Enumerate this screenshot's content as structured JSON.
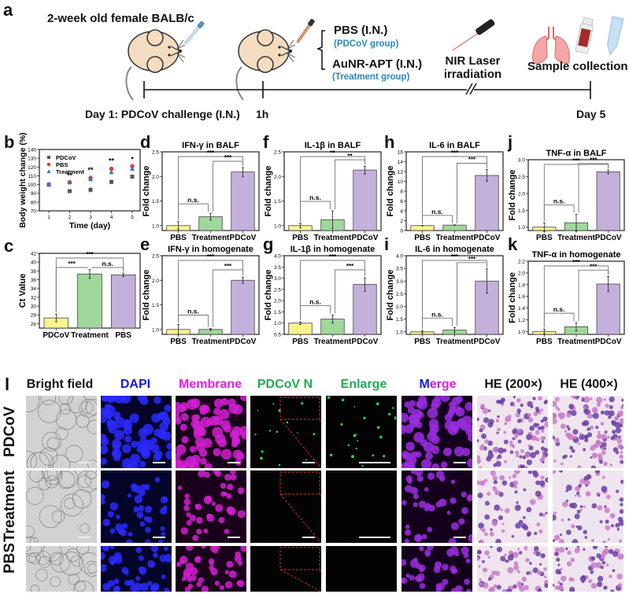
{
  "panel_a": {
    "label": "a",
    "mouse_strain": "2-week old female BALB/c",
    "branch_top": "PBS (I.N.)",
    "branch_top_sub": "(PDCoV group)",
    "branch_bottom": "AuNR-APT (I.N.)",
    "branch_bottom_sub": "(Treatment group)",
    "laser": "NIR Laser irradiation",
    "laser_line1": "NIR Laser",
    "laser_line2": "irradiation",
    "sample": "Sample collection",
    "day1": "Day 1: PDCoV challenge (I.N.)",
    "t1h": "1h",
    "day5": "Day 5",
    "colors": {
      "blue_text": "#2e86c1",
      "mouse": "#f3dcc0"
    }
  },
  "panel_l": {
    "label": "l",
    "columns": [
      "Bright field",
      "DAPI",
      "Membrane",
      "PDCoV N",
      "Enlarge",
      "Merge",
      "HE (200×)",
      "HE (400×)"
    ],
    "merge_parts": [
      "M",
      "er",
      "ge"
    ],
    "rows": [
      "PDCoV",
      "Treatment",
      "PBS"
    ],
    "colors": {
      "dapi": "#1a1aff",
      "membrane": "#e020e0",
      "pdcov": "#22aa55",
      "enlarge": "#22aa55"
    }
  },
  "chart_data": [
    {
      "id": "b",
      "label": "b",
      "type": "scatter",
      "title": "",
      "xlabel": "Time (day)",
      "ylabel": "Body weight change (%)",
      "x": [
        1,
        2,
        3,
        4,
        5
      ],
      "xticks": [
        "1",
        "2",
        "3",
        "4",
        "5"
      ],
      "ylim": [
        70,
        140
      ],
      "yticks": [
        "70",
        "80",
        "90",
        "100",
        "110",
        "120",
        "130",
        "140"
      ],
      "series": [
        {
          "name": "PDCoV",
          "marker": "square",
          "color": "#555555",
          "values": [
            100,
            92.5,
            94,
            103,
            109
          ],
          "errors": [
            2,
            1.5,
            3,
            2.5,
            1.5
          ]
        },
        {
          "name": "PBS",
          "marker": "circle",
          "color": "#e04040",
          "values": [
            100,
            102.5,
            107.5,
            118,
            121
          ],
          "errors": [
            2,
            1.5,
            3,
            2.5,
            1.5
          ]
        },
        {
          "name": "Treatment",
          "marker": "triangle",
          "color": "#3a6fd8",
          "values": [
            100,
            102.5,
            106,
            114,
            118
          ],
          "errors": [
            3,
            1.5,
            2.5,
            2.5,
            3
          ]
        }
      ],
      "annotations": [
        "",
        "**",
        "**",
        "**",
        "*"
      ]
    },
    {
      "id": "c",
      "label": "c",
      "type": "bar",
      "title": "",
      "xlabel": "",
      "ylabel": "Ct Value",
      "categories": [
        "PDCoV",
        "Treatment",
        "PBS"
      ],
      "values": [
        27.3,
        37.3,
        37.1
      ],
      "errors": [
        0.9,
        1.0,
        0.4
      ],
      "colors": [
        "#fbf38c",
        "#9fd89a",
        "#c3b0db"
      ],
      "ylim": [
        25,
        42
      ],
      "yticks": [
        "26",
        "28",
        "30",
        "32",
        "34",
        "36",
        "38",
        "40",
        "42"
      ],
      "ytick_values": [
        26,
        28,
        30,
        32,
        34,
        36,
        38,
        40,
        42
      ],
      "brackets": [
        {
          "from": 0,
          "to": 2,
          "text": "***"
        },
        {
          "from": 0,
          "to": 1,
          "text": "***"
        },
        {
          "from": 1,
          "to": 2,
          "text": "n.s."
        }
      ]
    },
    {
      "id": "d",
      "label": "d",
      "type": "bar",
      "title": "IFN-γ in BALF",
      "ylabel": "Fold change",
      "categories": [
        "PBS",
        "Treatment",
        "PDCoV"
      ],
      "values": [
        1.0,
        1.18,
        2.09
      ],
      "errors": [
        0.08,
        0.07,
        0.09
      ],
      "colors": [
        "#fbf38c",
        "#9fd89a",
        "#c3b0db"
      ],
      "ylim": [
        0.9,
        2.5
      ],
      "yticks": [
        "1.0",
        "1.5",
        "2.0",
        "2.5"
      ],
      "ytick_values": [
        1.0,
        1.5,
        2.0,
        2.5
      ],
      "brackets": [
        {
          "from": 0,
          "to": 2,
          "text": "***"
        },
        {
          "from": 1,
          "to": 2,
          "text": "***"
        },
        {
          "from": 0,
          "to": 1,
          "text": "n.s."
        }
      ]
    },
    {
      "id": "e",
      "label": "e",
      "type": "bar",
      "title": "IFN-γ in homogenate",
      "ylabel": "Fold change",
      "categories": [
        "PBS",
        "Treatment",
        "PDCoV"
      ],
      "values": [
        1.0,
        1.0,
        2.0
      ],
      "errors": [
        0.1,
        0.02,
        0.06
      ],
      "colors": [
        "#fbf38c",
        "#9fd89a",
        "#c3b0db"
      ],
      "ylim": [
        0.9,
        2.5
      ],
      "yticks": [
        "1.0",
        "1.5",
        "2.0",
        "2.5"
      ],
      "ytick_values": [
        1.0,
        1.5,
        2.0,
        2.5
      ],
      "brackets": [
        {
          "from": 0,
          "to": 2,
          "text": "***"
        },
        {
          "from": 1,
          "to": 2,
          "text": "***"
        },
        {
          "from": 0,
          "to": 1,
          "text": "n.s."
        }
      ]
    },
    {
      "id": "f",
      "label": "f",
      "type": "bar",
      "title": "IL-1β in BALF",
      "ylabel": "Fold change",
      "categories": [
        "PBS",
        "Treatment",
        "PDCoV"
      ],
      "values": [
        1.0,
        1.12,
        2.13
      ],
      "errors": [
        0.05,
        0.18,
        0.08
      ],
      "colors": [
        "#fbf38c",
        "#9fd89a",
        "#c3b0db"
      ],
      "ylim": [
        0.9,
        2.5
      ],
      "yticks": [
        "1.0",
        "1.5",
        "2.0",
        "2.5"
      ],
      "ytick_values": [
        1.0,
        1.5,
        2.0,
        2.5
      ],
      "brackets": [
        {
          "from": 0,
          "to": 2,
          "text": "**"
        },
        {
          "from": 1,
          "to": 2,
          "text": "**"
        },
        {
          "from": 0,
          "to": 1,
          "text": "n.s."
        }
      ]
    },
    {
      "id": "g",
      "label": "g",
      "type": "bar",
      "title": "IL-1β in homogenate",
      "ylabel": "Fold change",
      "categories": [
        "PBS",
        "Treatment",
        "PDCoV"
      ],
      "values": [
        1.0,
        1.18,
        2.72
      ],
      "errors": [
        0.06,
        0.18,
        0.3
      ],
      "colors": [
        "#fbf38c",
        "#9fd89a",
        "#c3b0db"
      ],
      "ylim": [
        0.5,
        4.0
      ],
      "yticks": [
        "0.5",
        "1.0",
        "1.5",
        "2.0",
        "2.5",
        "3.0",
        "3.5",
        "4.0"
      ],
      "ytick_values": [
        0.5,
        1.0,
        1.5,
        2.0,
        2.5,
        3.0,
        3.5,
        4.0
      ],
      "brackets": [
        {
          "from": 0,
          "to": 2,
          "text": "***"
        },
        {
          "from": 1,
          "to": 2,
          "text": "***"
        },
        {
          "from": 0,
          "to": 1,
          "text": "n.s."
        }
      ]
    },
    {
      "id": "h",
      "label": "h",
      "type": "bar",
      "title": "IL-6 in BALF",
      "ylabel": "Fold change",
      "categories": [
        "PBS",
        "Treatment",
        "PDCoV"
      ],
      "values": [
        1.0,
        1.1,
        11.2
      ],
      "errors": [
        0.05,
        0.05,
        1.2
      ],
      "colors": [
        "#fbf38c",
        "#9fd89a",
        "#c3b0db"
      ],
      "ylim": [
        0,
        16
      ],
      "yticks": [
        "0",
        "2",
        "4",
        "6",
        "8",
        "10",
        "12",
        "14",
        "16"
      ],
      "ytick_values": [
        0,
        2,
        4,
        6,
        8,
        10,
        12,
        14,
        16
      ],
      "brackets": [
        {
          "from": 0,
          "to": 2,
          "text": "***"
        },
        {
          "from": 1,
          "to": 2,
          "text": "***"
        },
        {
          "from": 0,
          "to": 1,
          "text": "n.s."
        }
      ]
    },
    {
      "id": "i",
      "label": "i",
      "type": "bar",
      "title": "IL-6 in homogenate",
      "ylabel": "Fold change",
      "categories": [
        "PBS",
        "Treatment",
        "PDCoV"
      ],
      "values": [
        1.0,
        1.07,
        3.0
      ],
      "errors": [
        0.05,
        0.1,
        0.48
      ],
      "colors": [
        "#fbf38c",
        "#9fd89a",
        "#c3b0db"
      ],
      "ylim": [
        0.9,
        4.0
      ],
      "yticks": [
        "1.0",
        "1.5",
        "2.0",
        "2.5",
        "3.0",
        "3.5",
        "4.0"
      ],
      "ytick_values": [
        1.0,
        1.5,
        2.0,
        2.5,
        3.0,
        3.5,
        4.0
      ],
      "brackets": [
        {
          "from": 0,
          "to": 2,
          "text": "***"
        },
        {
          "from": 1,
          "to": 2,
          "text": "***"
        },
        {
          "from": 0,
          "to": 1,
          "text": "n.s."
        }
      ]
    },
    {
      "id": "j",
      "label": "j",
      "type": "bar",
      "title": "TNF-α in BALF",
      "ylabel": "Fold change",
      "categories": [
        "PBS",
        "Treatment",
        "PDCoV"
      ],
      "values": [
        1.0,
        1.13,
        2.64
      ],
      "errors": [
        0.13,
        0.25,
        0.06
      ],
      "colors": [
        "#fbf38c",
        "#9fd89a",
        "#c3b0db"
      ],
      "ylim": [
        0.9,
        3.0
      ],
      "yticks": [
        "1.0",
        "1.5",
        "2.0",
        "2.5",
        "3.0"
      ],
      "ytick_values": [
        1.0,
        1.5,
        2.0,
        2.5,
        3.0
      ],
      "brackets": [
        {
          "from": 0,
          "to": 2,
          "text": "***"
        },
        {
          "from": 1,
          "to": 2,
          "text": "***"
        },
        {
          "from": 0,
          "to": 1,
          "text": "n.s."
        }
      ]
    },
    {
      "id": "k",
      "label": "k",
      "type": "bar",
      "title": "TNF-α in homogenate",
      "ylabel": "Fold change",
      "categories": [
        "PBS",
        "Treatment",
        "PDCoV"
      ],
      "values": [
        1.0,
        1.08,
        1.81
      ],
      "errors": [
        0.04,
        0.07,
        0.13
      ],
      "colors": [
        "#fbf38c",
        "#9fd89a",
        "#c3b0db"
      ],
      "ylim": [
        0.95,
        2.2
      ],
      "yticks": [
        "1.0",
        "1.2",
        "1.4",
        "1.6",
        "1.8",
        "2.0",
        "2.2"
      ],
      "ytick_values": [
        1.0,
        1.2,
        1.4,
        1.6,
        1.8,
        2.0,
        2.2
      ],
      "brackets": [
        {
          "from": 0,
          "to": 2,
          "text": "***"
        },
        {
          "from": 1,
          "to": 2,
          "text": "***"
        },
        {
          "from": 0,
          "to": 1,
          "text": "n.s."
        }
      ]
    }
  ]
}
